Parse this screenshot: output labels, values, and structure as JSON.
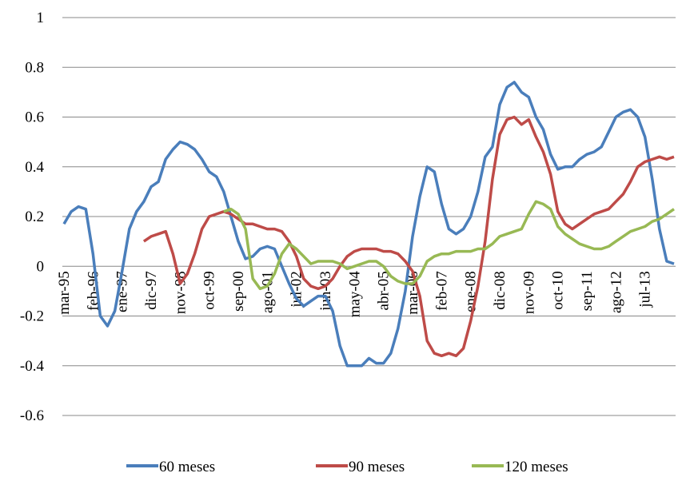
{
  "chart_data": {
    "type": "line",
    "categories": [
      "mar-95",
      null,
      null,
      null,
      "feb-96",
      null,
      null,
      null,
      "ene-97",
      null,
      null,
      null,
      "dic-97",
      null,
      null,
      null,
      "nov-98",
      null,
      null,
      null,
      "oct-99",
      null,
      null,
      null,
      "sep-00",
      null,
      null,
      null,
      "ago-01",
      null,
      null,
      null,
      "jul-02",
      null,
      null,
      null,
      "jun-03",
      null,
      null,
      null,
      "may-04",
      null,
      null,
      null,
      "abr-05",
      null,
      null,
      null,
      "mar-06",
      null,
      null,
      null,
      "feb-07",
      null,
      null,
      null,
      "ene-08",
      null,
      null,
      null,
      "dic-08",
      null,
      null,
      null,
      "nov-09",
      null,
      null,
      null,
      "oct-10",
      null,
      null,
      null,
      "sep-11",
      null,
      null,
      null,
      "ago-12",
      null,
      null,
      null,
      "jul-13",
      null,
      null,
      null,
      null
    ],
    "series": [
      {
        "name": "60 meses",
        "color": "#4a7ebb",
        "values": [
          0.17,
          0.22,
          0.24,
          0.23,
          0.05,
          -0.2,
          -0.24,
          -0.18,
          -0.02,
          0.15,
          0.22,
          0.26,
          0.32,
          0.34,
          0.43,
          0.47,
          0.5,
          0.49,
          0.47,
          0.43,
          0.38,
          0.36,
          0.3,
          0.2,
          0.1,
          0.03,
          0.04,
          0.07,
          0.08,
          0.07,
          0.0,
          -0.07,
          -0.13,
          -0.16,
          -0.14,
          -0.12,
          -0.12,
          -0.18,
          -0.32,
          -0.4,
          -0.4,
          -0.4,
          -0.37,
          -0.39,
          -0.39,
          -0.35,
          -0.25,
          -0.1,
          0.12,
          0.28,
          0.4,
          0.38,
          0.25,
          0.15,
          0.13,
          0.15,
          0.2,
          0.3,
          0.44,
          0.48,
          0.65,
          0.72,
          0.74,
          0.7,
          0.68,
          0.6,
          0.55,
          0.45,
          0.39,
          0.4,
          0.4,
          0.43,
          0.45,
          0.46,
          0.48,
          0.54,
          0.6,
          0.62,
          0.63,
          0.6,
          0.52,
          0.35,
          0.15,
          0.02,
          0.01
        ]
      },
      {
        "name": "90 meses",
        "color": "#be4b48",
        "values": [
          null,
          null,
          null,
          null,
          null,
          null,
          null,
          null,
          null,
          null,
          null,
          0.1,
          0.12,
          0.13,
          0.14,
          0.05,
          -0.07,
          -0.03,
          0.05,
          0.15,
          0.2,
          0.21,
          0.22,
          0.21,
          0.19,
          0.17,
          0.17,
          0.16,
          0.15,
          0.15,
          0.14,
          0.1,
          0.04,
          -0.05,
          -0.08,
          -0.09,
          -0.08,
          -0.05,
          0.0,
          0.04,
          0.06,
          0.07,
          0.07,
          0.07,
          0.06,
          0.06,
          0.05,
          0.02,
          -0.02,
          -0.12,
          -0.3,
          -0.35,
          -0.36,
          -0.35,
          -0.36,
          -0.33,
          -0.22,
          -0.08,
          0.1,
          0.35,
          0.53,
          0.59,
          0.6,
          0.57,
          0.59,
          0.52,
          0.46,
          0.37,
          0.22,
          0.17,
          0.15,
          0.17,
          0.19,
          0.21,
          0.22,
          0.23,
          0.26,
          0.29,
          0.34,
          0.4,
          0.42,
          0.43,
          0.44,
          0.43,
          0.44
        ]
      },
      {
        "name": "120 meses",
        "color": "#98b954",
        "values": [
          null,
          null,
          null,
          null,
          null,
          null,
          null,
          null,
          null,
          null,
          null,
          null,
          null,
          null,
          null,
          null,
          null,
          null,
          null,
          null,
          null,
          null,
          0.22,
          0.23,
          0.21,
          0.15,
          -0.05,
          -0.09,
          -0.08,
          -0.03,
          0.05,
          0.09,
          0.07,
          0.04,
          0.01,
          0.02,
          0.02,
          0.02,
          0.01,
          -0.01,
          0.0,
          0.01,
          0.02,
          0.02,
          0.0,
          -0.04,
          -0.06,
          -0.07,
          -0.07,
          -0.04,
          0.02,
          0.04,
          0.05,
          0.05,
          0.06,
          0.06,
          0.06,
          0.07,
          0.07,
          0.09,
          0.12,
          0.13,
          0.14,
          0.15,
          0.21,
          0.26,
          0.25,
          0.23,
          0.16,
          0.13,
          0.11,
          0.09,
          0.08,
          0.07,
          0.07,
          0.08,
          0.1,
          0.12,
          0.14,
          0.15,
          0.16,
          0.18,
          0.19,
          0.21,
          0.23
        ]
      }
    ],
    "ylim": [
      -0.6,
      1
    ],
    "yticks": [
      -0.6,
      -0.4,
      -0.2,
      0,
      0.2,
      0.4,
      0.6,
      0.8,
      1
    ],
    "grid": true,
    "legend": "bottom"
  }
}
